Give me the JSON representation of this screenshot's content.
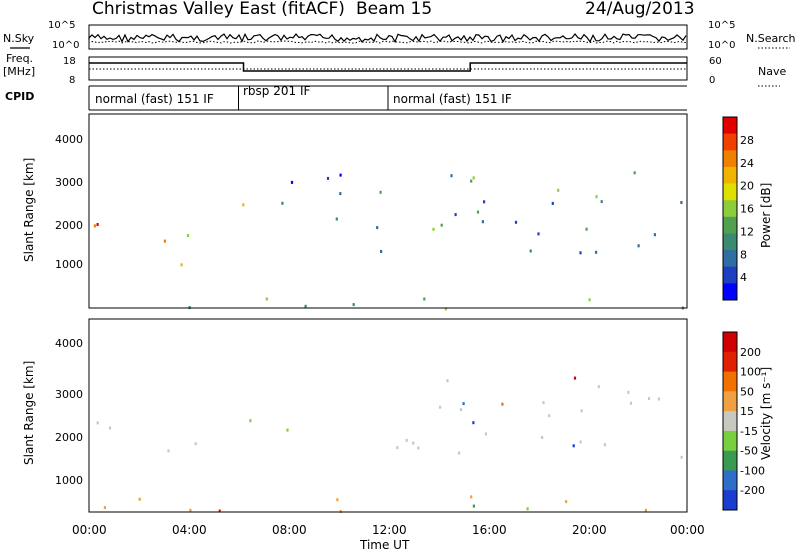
{
  "header": {
    "title": "Christmas Valley East (fitACF)",
    "beam": "Beam 15",
    "date": "24/Aug/2013"
  },
  "left_labels": {
    "nsky": "N.Sky",
    "freq_line1": "Freq.",
    "freq_line2": "[MHz]",
    "cpid": "CPID"
  },
  "right_labels": {
    "nsearch": "N.Search",
    "nave": "Nave"
  },
  "chart_data": [
    {
      "type": "line",
      "panel": "noise",
      "ytick_labels": [
        "10^5",
        "10^0"
      ],
      "right_ytick_labels": [
        "10^5",
        "10^0"
      ],
      "series": [
        {
          "name": "N.Sky",
          "style": "solid"
        },
        {
          "name": "N.Search",
          "style": "dotted"
        }
      ]
    },
    {
      "type": "line",
      "panel": "frequency",
      "ytick_labels": [
        "18",
        "8"
      ],
      "right_ytick_labels": [
        "60",
        "0"
      ],
      "series": [
        {
          "name": "Freq.",
          "style": "solid"
        },
        {
          "name": "Nave",
          "style": "dotted"
        }
      ]
    },
    {
      "type": "table",
      "panel": "cpid",
      "segments": [
        {
          "label": "normal (fast) 151 IF",
          "start_h": 0,
          "end_h": 6.0
        },
        {
          "label": "rbsp 201 IF",
          "start_h": 6.0,
          "end_h": 12.0
        },
        {
          "label": "normal (fast) 151 IF",
          "start_h": 12.0,
          "end_h": 24.0
        }
      ]
    },
    {
      "type": "heatmap",
      "panel": "power",
      "ylabel": "Slant Range [km]",
      "ylim": [
        0,
        4500
      ],
      "ytick_labels": [
        "1000",
        "2000",
        "3000",
        "4000"
      ],
      "xlim": [
        0,
        24
      ],
      "colorbar": {
        "label": "Power [dB]",
        "tick_labels": [
          "4",
          "8",
          "12",
          "16",
          "20",
          "24",
          "28"
        ],
        "colors": [
          "#0000ff",
          "#1d3fc0",
          "#2e6ea0",
          "#3a8a72",
          "#50a050",
          "#8ccd3c",
          "#e0e000",
          "#f0b400",
          "#f08000",
          "#f04000",
          "#e00000"
        ]
      },
      "echo_bands": [
        {
          "t0": 0.0,
          "t1": 2.9,
          "r0": 1700,
          "r1": 2300,
          "level": 0.85
        },
        {
          "t0": 3.0,
          "t1": 5.1,
          "r0": 1000,
          "r1": 2300,
          "level": 0.7
        },
        {
          "t0": 5.6,
          "t1": 6.2,
          "r0": 1000,
          "r1": 1300,
          "level": 0.85
        },
        {
          "t0": 5.6,
          "t1": 6.3,
          "r0": 2000,
          "r1": 3000,
          "level": 0.6
        },
        {
          "t0": 6.3,
          "t1": 11.0,
          "r0": 2000,
          "r1": 3200,
          "level": 0.15
        },
        {
          "t0": 11.5,
          "t1": 24.0,
          "r0": 1300,
          "r1": 3200,
          "level": 0.3
        },
        {
          "t0": 0.0,
          "t1": 24.0,
          "r0": 0,
          "r1": 300,
          "level": 0.4
        }
      ]
    },
    {
      "type": "heatmap",
      "panel": "velocity",
      "ylabel": "Slant Range [km]",
      "xlabel": "Time UT",
      "ylim": [
        0,
        4500
      ],
      "ytick_labels": [
        "1000",
        "2000",
        "3000",
        "4000"
      ],
      "xlim": [
        0,
        24
      ],
      "x_tick_labels": [
        "00:00",
        "04:00",
        "08:00",
        "12:00",
        "16:00",
        "20:00",
        "00:00"
      ],
      "colorbar": {
        "label": "Velocity [m s⁻¹]",
        "tick_labels": [
          "200",
          "100",
          "50",
          "15",
          "-15",
          "-50",
          "-100",
          "-200"
        ],
        "colors": [
          "#1a3ccf",
          "#2d6ec8",
          "#3a9a50",
          "#78d040",
          "#c8c8c0",
          "#f0a040",
          "#f07000",
          "#e02000",
          "#d00000"
        ]
      },
      "echo_bands": [
        {
          "t0": 0.0,
          "t1": 2.9,
          "r0": 1700,
          "r1": 2300,
          "color": "grey"
        },
        {
          "t0": 3.0,
          "t1": 5.1,
          "r0": 1300,
          "r1": 2300,
          "color": "grey"
        },
        {
          "t0": 5.6,
          "t1": 6.2,
          "r0": 1000,
          "r1": 1300,
          "color": "green"
        },
        {
          "t0": 6.3,
          "t1": 8.0,
          "r0": 1500,
          "r1": 2600,
          "color": "green"
        },
        {
          "t0": 11.5,
          "t1": 24.0,
          "r0": 1300,
          "r1": 3200,
          "color": "grey"
        },
        {
          "t0": 0.0,
          "t1": 24.0,
          "r0": 0,
          "r1": 400,
          "color": "orange"
        }
      ]
    }
  ]
}
